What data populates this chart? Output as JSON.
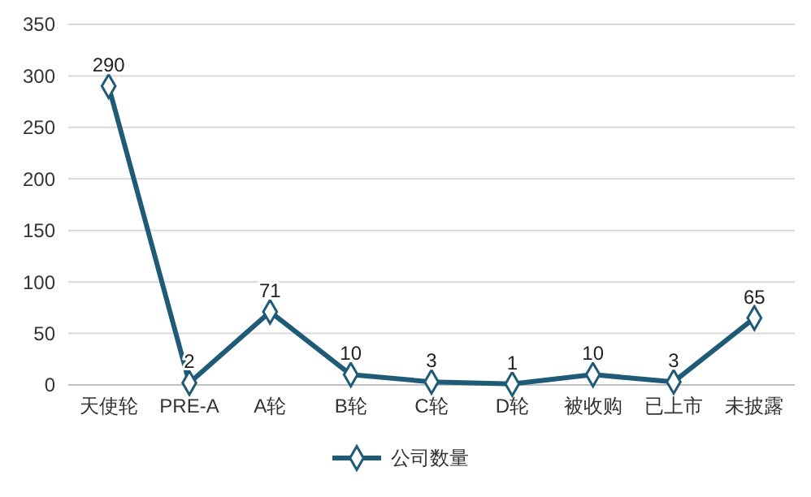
{
  "chart_data": {
    "type": "line",
    "categories": [
      "天使轮",
      "PRE-A",
      "A轮",
      "B轮",
      "C轮",
      "D轮",
      "被收购",
      "已上市",
      "未披露"
    ],
    "series": [
      {
        "name": "公司数量",
        "color": "#1f5b77",
        "values": [
          290,
          2,
          71,
          10,
          3,
          1,
          10,
          3,
          65
        ]
      }
    ],
    "ylim": [
      0,
      350
    ],
    "yticks": [
      0,
      50,
      100,
      150,
      200,
      250,
      300,
      350
    ],
    "grid": "y",
    "legend": "bottom",
    "marker": "diamond",
    "line_style": "solid",
    "data_labels": true
  }
}
